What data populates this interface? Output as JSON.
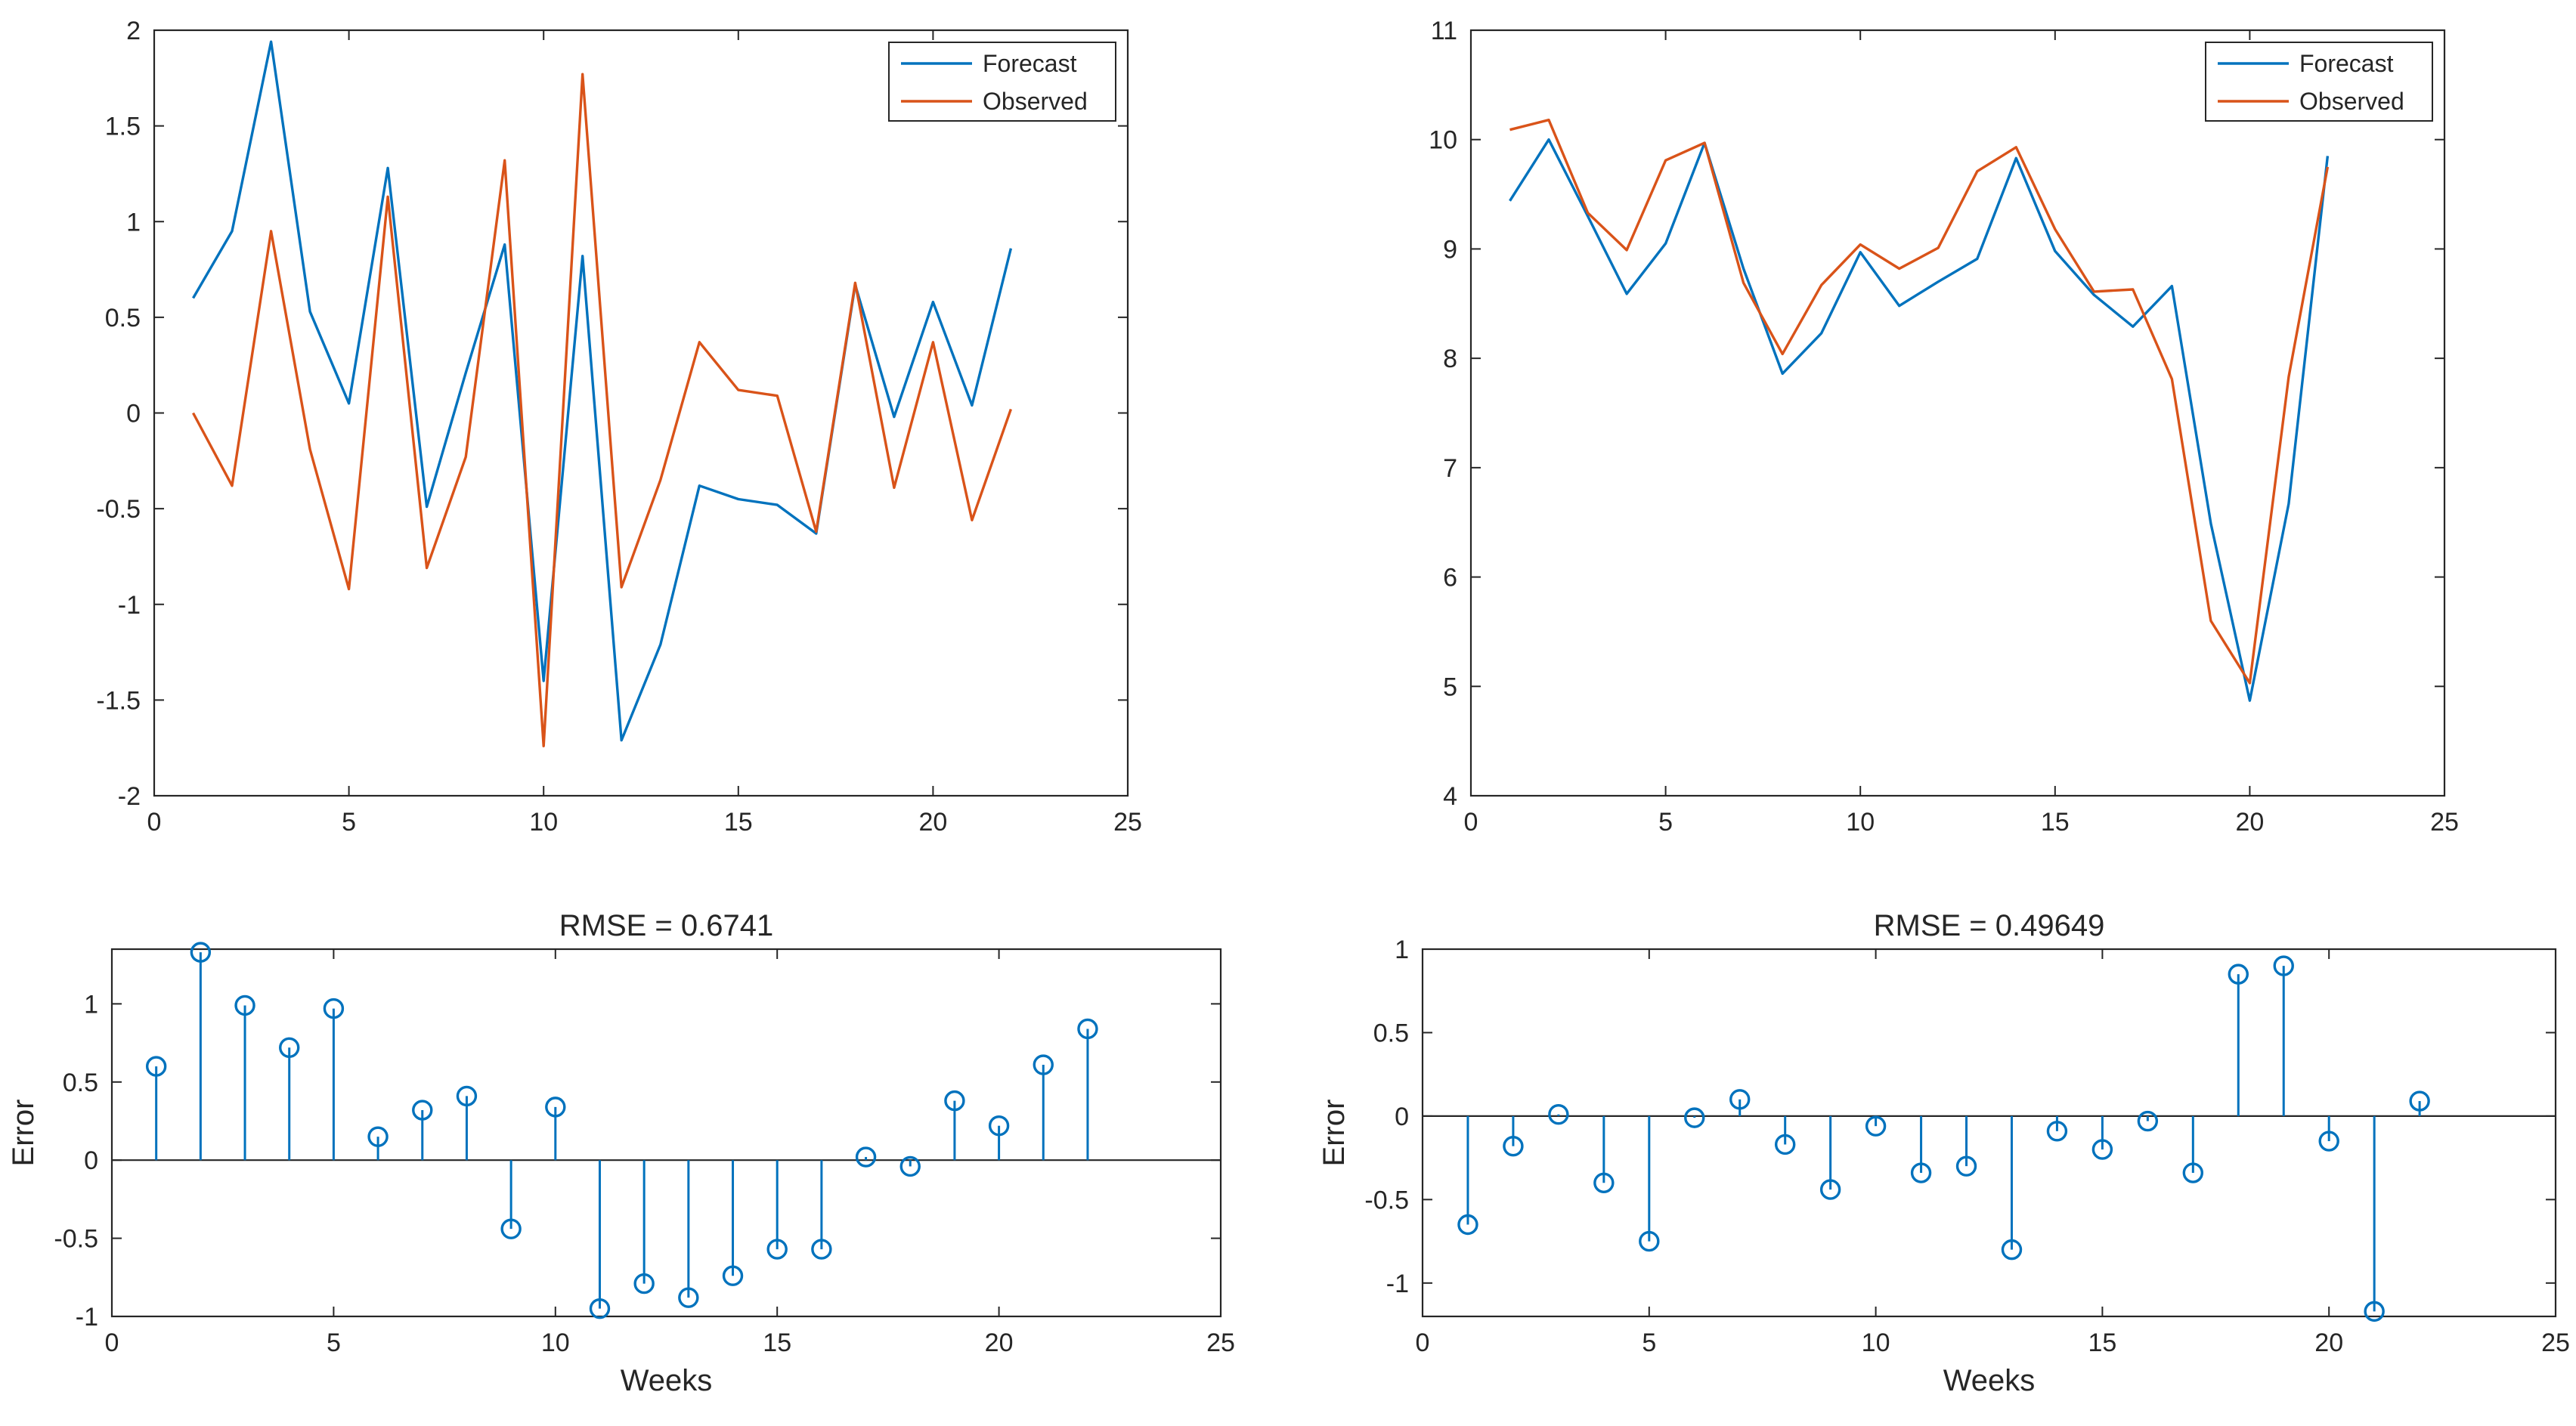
{
  "colors": {
    "forecast": "#0072BD",
    "observed": "#D95319",
    "axis": "#262626"
  },
  "chart_data": [
    {
      "type": "line",
      "title": "",
      "xlabel": "",
      "ylabel": "",
      "xlim": [
        0,
        25
      ],
      "ylim": [
        -2,
        2
      ],
      "xticks": [
        0,
        5,
        10,
        15,
        20,
        25
      ],
      "yticks": [
        -2,
        -1.5,
        -1,
        -0.5,
        0,
        0.5,
        1,
        1.5,
        2
      ],
      "legend_position": "top-right",
      "x": [
        1,
        2,
        3,
        4,
        5,
        6,
        7,
        8,
        9,
        10,
        11,
        12,
        13,
        14,
        15,
        16,
        17,
        18,
        19,
        20,
        21,
        22
      ],
      "series": [
        {
          "name": "Forecast",
          "color_key": "forecast",
          "values": [
            0.6,
            0.95,
            1.94,
            0.53,
            0.05,
            1.28,
            -0.49,
            0.21,
            0.88,
            -1.4,
            0.82,
            -1.71,
            -1.21,
            -0.38,
            -0.45,
            -0.48,
            -0.63,
            0.67,
            -0.02,
            0.58,
            0.04,
            0.86
          ]
        },
        {
          "name": "Observed",
          "color_key": "observed",
          "values": [
            0.0,
            -0.38,
            0.95,
            -0.19,
            -0.92,
            1.13,
            -0.81,
            -0.23,
            1.32,
            -1.74,
            1.77,
            -0.91,
            -0.35,
            0.37,
            0.12,
            0.09,
            -0.62,
            0.68,
            -0.39,
            0.37,
            -0.56,
            0.02
          ]
        }
      ]
    },
    {
      "type": "line",
      "title": "",
      "xlabel": "",
      "ylabel": "",
      "xlim": [
        0,
        25
      ],
      "ylim": [
        4,
        11
      ],
      "xticks": [
        0,
        5,
        10,
        15,
        20,
        25
      ],
      "yticks": [
        4,
        5,
        6,
        7,
        8,
        9,
        10,
        11
      ],
      "legend_position": "top-right",
      "x": [
        1,
        2,
        3,
        4,
        5,
        6,
        7,
        8,
        9,
        10,
        11,
        12,
        13,
        14,
        15,
        16,
        17,
        18,
        19,
        20,
        21,
        22
      ],
      "series": [
        {
          "name": "Forecast",
          "color_key": "forecast",
          "values": [
            9.44,
            10.0,
            9.3,
            8.59,
            9.05,
            9.97,
            8.82,
            7.86,
            8.23,
            8.97,
            8.48,
            8.7,
            8.91,
            9.83,
            8.98,
            8.58,
            8.29,
            8.66,
            6.49,
            4.87,
            6.67,
            9.85
          ]
        },
        {
          "name": "Observed",
          "color_key": "observed",
          "values": [
            10.09,
            10.18,
            9.33,
            8.99,
            9.81,
            9.97,
            8.69,
            8.04,
            8.67,
            9.04,
            8.82,
            9.01,
            9.71,
            9.93,
            9.18,
            8.61,
            8.63,
            7.81,
            5.6,
            5.03,
            7.83,
            9.75
          ]
        }
      ]
    },
    {
      "type": "stem",
      "title": "RMSE = 0.6741",
      "xlabel": "Weeks",
      "ylabel": "Error",
      "xlim": [
        0,
        25
      ],
      "ylim": [
        -1,
        1.35
      ],
      "xticks": [
        0,
        5,
        10,
        15,
        20,
        25
      ],
      "yticks": [
        -1,
        -0.5,
        0,
        0.5,
        1
      ],
      "color_key": "forecast",
      "x": [
        1,
        2,
        3,
        4,
        5,
        6,
        7,
        8,
        9,
        10,
        11,
        12,
        13,
        14,
        15,
        16,
        17,
        18,
        19,
        20,
        21,
        22
      ],
      "values": [
        0.6,
        1.33,
        0.99,
        0.72,
        0.97,
        0.15,
        0.32,
        0.41,
        -0.44,
        0.34,
        -0.95,
        -0.79,
        -0.88,
        -0.74,
        -0.57,
        -0.57,
        0.02,
        -0.04,
        0.38,
        0.22,
        0.61,
        0.84
      ]
    },
    {
      "type": "stem",
      "title": "RMSE = 0.49649",
      "xlabel": "Weeks",
      "ylabel": "Error",
      "xlim": [
        0,
        25
      ],
      "ylim": [
        -1.2,
        1
      ],
      "xticks": [
        0,
        5,
        10,
        15,
        20,
        25
      ],
      "yticks": [
        -1,
        -0.5,
        0,
        0.5,
        1
      ],
      "color_key": "forecast",
      "x": [
        1,
        2,
        3,
        4,
        5,
        6,
        7,
        8,
        9,
        10,
        11,
        12,
        13,
        14,
        15,
        16,
        17,
        18,
        19,
        20,
        21,
        22
      ],
      "values": [
        -0.65,
        -0.18,
        0.01,
        -0.4,
        -0.75,
        -0.01,
        0.1,
        -0.17,
        -0.44,
        -0.06,
        -0.34,
        -0.3,
        -0.8,
        -0.09,
        -0.2,
        -0.03,
        -0.34,
        0.85,
        0.9,
        -0.15,
        -1.17,
        0.09
      ]
    }
  ]
}
